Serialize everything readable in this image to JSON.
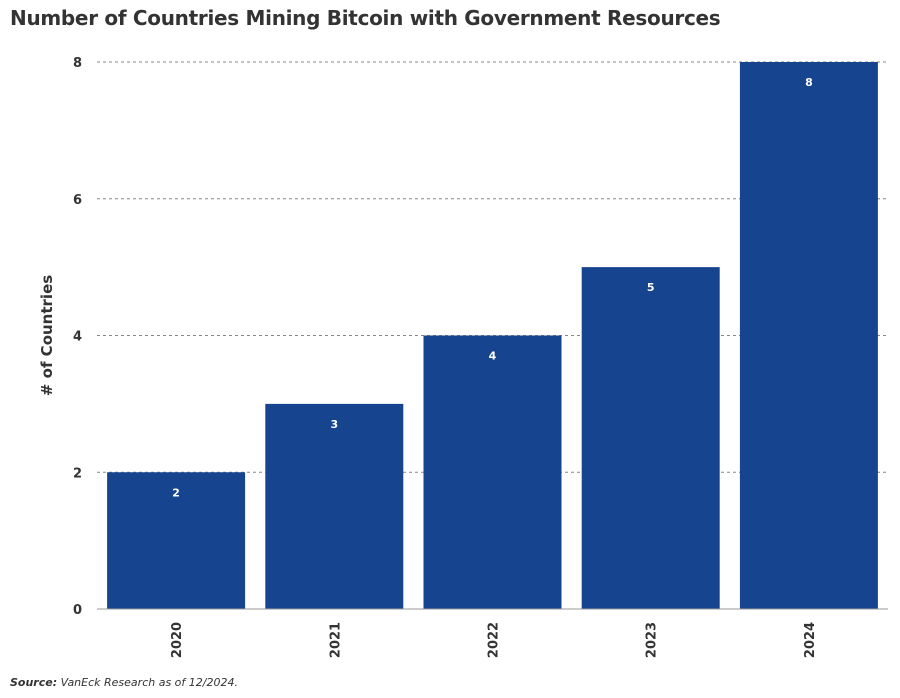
{
  "chart_data": {
    "type": "bar",
    "title": "Number of Countries Mining Bitcoin with Government Resources",
    "categories": [
      "2020",
      "2021",
      "2022",
      "2023",
      "2024"
    ],
    "values": [
      2,
      3,
      4,
      5,
      8
    ],
    "xlabel": "",
    "ylabel": "# of Countries",
    "ylim": [
      0,
      8
    ],
    "yticks": [
      0,
      2,
      4,
      6,
      8
    ],
    "grid": true,
    "bar_color": "#17448f",
    "data_labels": true
  },
  "source_label": "Source:",
  "source_text": " VanEck Research as of 12/2024."
}
